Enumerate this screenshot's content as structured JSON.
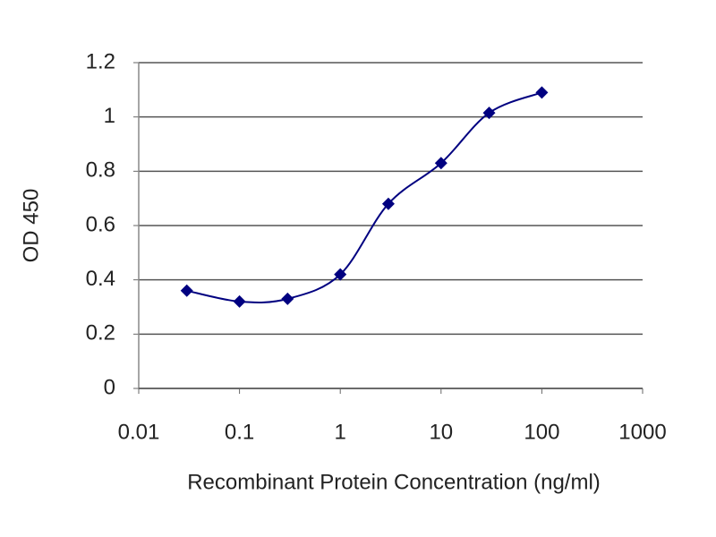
{
  "chart_data": {
    "type": "line",
    "x_label": "Recombinant Protein Concentration (ng/ml)",
    "y_label": "OD 450",
    "x": [
      0.03,
      0.1,
      0.3,
      1,
      3,
      10,
      30,
      100
    ],
    "series": [
      {
        "color": "#000080",
        "values": [
          0.36,
          0.32,
          0.33,
          0.42,
          0.68,
          0.83,
          1.015,
          1.09
        ]
      }
    ],
    "xscale": "log",
    "xlim": [
      0.01,
      1000
    ],
    "xticks": [
      0.01,
      0.1,
      1,
      10,
      100,
      1000
    ],
    "ylim": [
      0,
      1.2
    ],
    "yticks": [
      0,
      0.2,
      0.4,
      0.6,
      0.8,
      1,
      1.2
    ],
    "grid": true
  }
}
